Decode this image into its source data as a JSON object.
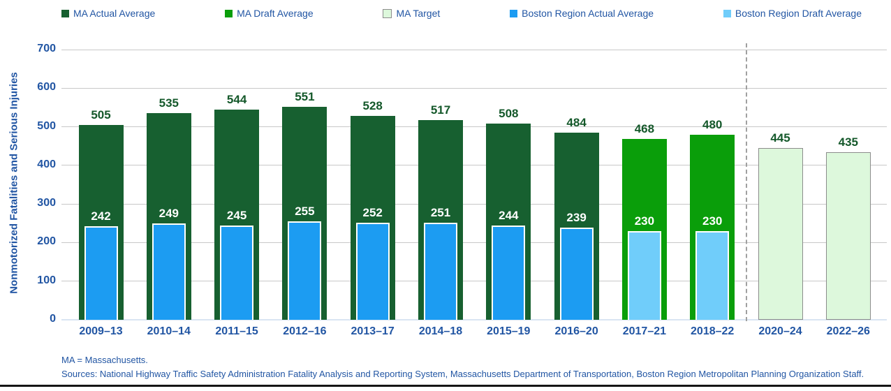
{
  "legend": {
    "items": [
      {
        "label": "MA Actual Average",
        "swatch": "ma-actual"
      },
      {
        "label": "MA Draft Average",
        "swatch": "ma-draft"
      },
      {
        "label": "MA Target",
        "swatch": "ma-target"
      },
      {
        "label": "Boston Region Actual Average",
        "swatch": "boston-actual"
      },
      {
        "label": "Boston Region Draft Average",
        "swatch": "boston-draft"
      }
    ]
  },
  "colors": {
    "ma_actual": "#176030",
    "ma_draft": "#0A9E0A",
    "ma_target_fill": "#DDF8DC",
    "ma_target_border": "#8C8C8C",
    "boston_actual": "#1C9CF2",
    "boston_draft": "#70CDFA",
    "axis_text": "#2155A3",
    "value_text": "#14582A",
    "gridline": "#C8C8C8",
    "dashed_line": "#A0A0A0",
    "baseline": "#D9E5F2",
    "bottom_rule": "#151515"
  },
  "chart_data": {
    "type": "bar",
    "title": "",
    "ylabel": "Nonmotorized Fatalities and Serious Injuries",
    "xlabel": "",
    "ylim": [
      0,
      700
    ],
    "yticks": [
      0,
      100,
      200,
      300,
      400,
      500,
      600,
      700
    ],
    "grid": true,
    "legend_position": "top",
    "categories": [
      "2009–13",
      "2010–14",
      "2011–15",
      "2012–16",
      "2013–17",
      "2014–18",
      "2015–19",
      "2016–20",
      "2017–21",
      "2018–22",
      "2020–24",
      "2022–26"
    ],
    "category_kinds": [
      "actual",
      "actual",
      "actual",
      "actual",
      "actual",
      "actual",
      "actual",
      "actual",
      "draft",
      "draft",
      "target",
      "target"
    ],
    "series": [
      {
        "name": "MA Average",
        "values": [
          505,
          535,
          544,
          551,
          528,
          517,
          508,
          484,
          468,
          480,
          445,
          435
        ]
      },
      {
        "name": "Boston Region Average",
        "values": [
          242,
          249,
          245,
          255,
          252,
          251,
          244,
          239,
          230,
          230,
          null,
          null
        ]
      }
    ],
    "divider_between": [
      "2018–22",
      "2020–24"
    ]
  },
  "footer": {
    "note": "MA = Massachusetts.",
    "sources": "Sources: National Highway Traffic Safety Administration Fatality Analysis and Reporting System, Massachusetts Department of Transportation, Boston Region Metropolitan Planning Organization Staff."
  }
}
